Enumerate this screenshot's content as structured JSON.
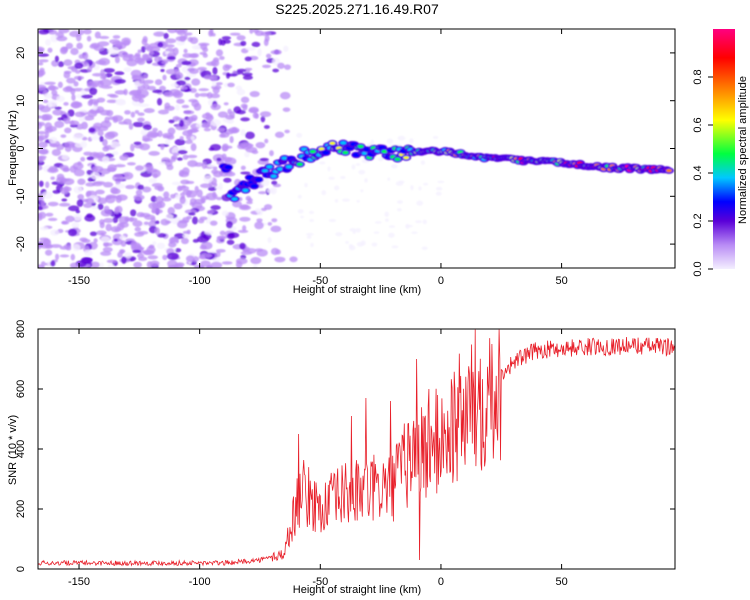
{
  "figure": {
    "title": "S225.2025.271.16.49.R07"
  },
  "chart_data": [
    {
      "type": "heatmap",
      "name": "spectrogram",
      "xlabel": "Height of straight line (km)",
      "ylabel": "Frequency (Hz)",
      "xlim": [
        -167,
        97
      ],
      "ylim": [
        -25,
        25
      ],
      "xticks": [
        -150,
        -100,
        -50,
        0,
        50
      ],
      "xtick_labels": [
        "-150",
        "-100",
        "-50",
        "0",
        "50"
      ],
      "yticks": [
        -20,
        -10,
        0,
        10,
        20
      ],
      "ytick_labels": [
        "-20",
        "-10",
        "0",
        "10",
        "20"
      ],
      "colorbar": {
        "label": "Normalized spectral amplitude",
        "range": [
          0,
          1
        ],
        "ticks": [
          0.0,
          0.2,
          0.4,
          0.6,
          0.8
        ],
        "tick_labels": [
          "0.0",
          "0.2",
          "0.4",
          "0.6",
          "0.8"
        ],
        "colors": [
          "#f4efff",
          "#b98cf5",
          "#5a00d8",
          "#0000ff",
          "#00c8ff",
          "#00ff40",
          "#ffff00",
          "#ff8000",
          "#ff0000",
          "#ff0080"
        ]
      },
      "ridge": {
        "description_points": [
          {
            "x": -88,
            "y": -10
          },
          {
            "x": -75,
            "y": -6
          },
          {
            "x": -60,
            "y": -2
          },
          {
            "x": -45,
            "y": 0
          },
          {
            "x": -30,
            "y": -1
          },
          {
            "x": -15,
            "y": -1
          },
          {
            "x": 0,
            "y": -0.5
          },
          {
            "x": 20,
            "y": -2
          },
          {
            "x": 50,
            "y": -3
          },
          {
            "x": 70,
            "y": -4
          },
          {
            "x": 95,
            "y": -4.5
          }
        ]
      }
    },
    {
      "type": "line",
      "name": "snr",
      "xlabel": "Height of straight line (km)",
      "ylabel": "SNR (10 * v/v)",
      "xlim": [
        -167,
        97
      ],
      "ylim": [
        0,
        800
      ],
      "xticks": [
        -150,
        -100,
        -50,
        0,
        50
      ],
      "xtick_labels": [
        "-150",
        "-100",
        "-50",
        "0",
        "50"
      ],
      "yticks": [
        0,
        200,
        400,
        600,
        800
      ],
      "ytick_labels": [
        "0",
        "200",
        "400",
        "600",
        "800"
      ],
      "color": "#e8202a",
      "envelope": {
        "x": [
          -167,
          -90,
          -75,
          -65,
          -62,
          -58,
          -50,
          -40,
          -30,
          -20,
          -12,
          -5,
          0,
          10,
          20,
          30,
          40,
          60,
          80,
          97
        ],
        "y": [
          20,
          20,
          30,
          50,
          150,
          260,
          200,
          250,
          260,
          280,
          380,
          400,
          430,
          520,
          610,
          690,
          730,
          740,
          745,
          740
        ]
      },
      "spikes": [
        {
          "x": -59,
          "y": 450
        },
        {
          "x": -37,
          "y": 510
        },
        {
          "x": -31,
          "y": 570
        },
        {
          "x": -21,
          "y": 560
        },
        {
          "x": -10,
          "y": 700
        },
        {
          "x": -9,
          "y": 30
        },
        {
          "x": -5,
          "y": 600
        }
      ]
    }
  ]
}
